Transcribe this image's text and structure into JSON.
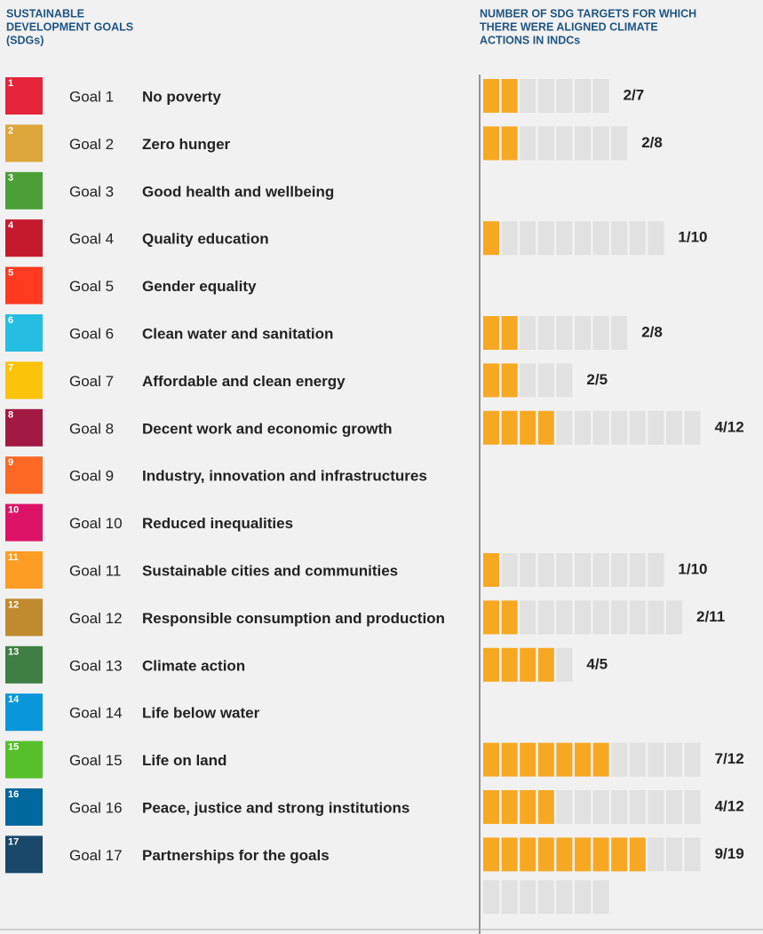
{
  "header": {
    "left": [
      "SUSTAINABLE",
      "DEVELOPMENT GOALS",
      "(SDGs)"
    ],
    "right": [
      "NUMBER OF SDG TARGETS FOR WHICH",
      "THERE WERE ALIGNED CLIMATE",
      "ACTIONS IN INDCs"
    ]
  },
  "colors": {
    "aligned": "#f7a823",
    "other": "#e1e1e1"
  },
  "goals": [
    {
      "icon_number": "1",
      "goal": "Goal 1",
      "name": "No poverty",
      "color": "#e5243b",
      "aligned": 2,
      "total": 7,
      "label": "2/7"
    },
    {
      "icon_number": "2",
      "goal": "Goal 2",
      "name": "Zero hunger",
      "color": "#dda63a",
      "aligned": 2,
      "total": 8,
      "label": "2/8"
    },
    {
      "icon_number": "3",
      "goal": "Goal 3",
      "name": "Good health and wellbeing",
      "color": "#4c9f38"
    },
    {
      "icon_number": "4",
      "goal": "Goal 4",
      "name": "Quality education",
      "color": "#c5192d",
      "aligned": 1,
      "total": 10,
      "label": "1/10"
    },
    {
      "icon_number": "5",
      "goal": "Goal 5",
      "name": "Gender equality",
      "color": "#ff3a21"
    },
    {
      "icon_number": "6",
      "goal": "Goal 6",
      "name": "Clean water and sanitation",
      "color": "#26bde2",
      "aligned": 2,
      "total": 8,
      "label": "2/8"
    },
    {
      "icon_number": "7",
      "goal": "Goal 7",
      "name": "Affordable and clean energy",
      "color": "#fcc30b",
      "aligned": 2,
      "total": 5,
      "label": "2/5"
    },
    {
      "icon_number": "8",
      "goal": "Goal 8",
      "name": "Decent work and economic growth",
      "color": "#a21942",
      "aligned": 4,
      "total": 12,
      "label": "4/12"
    },
    {
      "icon_number": "9",
      "goal": "Goal 9",
      "name": "Industry, innovation and infrastructures",
      "color": "#fd6925"
    },
    {
      "icon_number": "10",
      "goal": "Goal 10",
      "name": "Reduced inequalities",
      "color": "#dd1367"
    },
    {
      "icon_number": "11",
      "goal": "Goal 11",
      "name": "Sustainable cities and communities",
      "color": "#fd9d24",
      "aligned": 1,
      "total": 10,
      "label": "1/10"
    },
    {
      "icon_number": "12",
      "goal": "Goal 12",
      "name": "Responsible consumption and production",
      "color": "#bf8b2e",
      "aligned": 2,
      "total": 11,
      "label": "2/11"
    },
    {
      "icon_number": "13",
      "goal": "Goal 13",
      "name": "Climate action",
      "color": "#3f7e44",
      "aligned": 4,
      "total": 5,
      "label": "4/5"
    },
    {
      "icon_number": "14",
      "goal": "Goal 14",
      "name": "Life below water",
      "color": "#0a97d9"
    },
    {
      "icon_number": "15",
      "goal": "Goal 15",
      "name": "Life on land",
      "color": "#56c02b",
      "aligned": 7,
      "total": 12,
      "label": "7/12"
    },
    {
      "icon_number": "16",
      "goal": "Goal 16",
      "name": "Peace, justice and strong institutions",
      "color": "#00689d",
      "aligned": 4,
      "total": 12,
      "label": "4/12"
    },
    {
      "icon_number": "17",
      "goal": "Goal 17",
      "name": "Partnerships for the goals",
      "color": "#19486a",
      "aligned": 9,
      "total": 19,
      "label": "9/19"
    }
  ]
}
